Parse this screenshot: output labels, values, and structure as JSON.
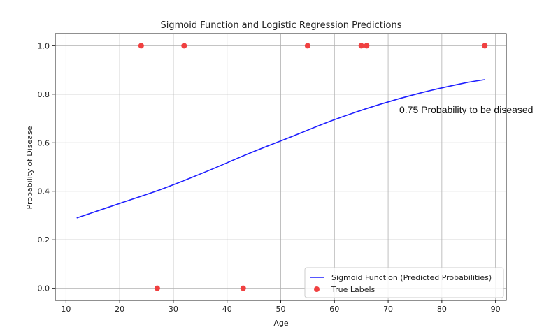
{
  "chart_data": {
    "type": "line",
    "title": "Sigmoid Function and Logistic Regression Predictions",
    "xlabel": "Age",
    "ylabel": "Probability of Disease",
    "xlim": [
      8,
      92
    ],
    "ylim": [
      -0.05,
      1.05
    ],
    "xticks": [
      10,
      20,
      30,
      40,
      50,
      60,
      70,
      80,
      90
    ],
    "yticks": [
      0.0,
      0.2,
      0.4,
      0.6,
      0.8,
      1.0
    ],
    "xtick_labels": [
      "10",
      "20",
      "30",
      "40",
      "50",
      "60",
      "70",
      "80",
      "90"
    ],
    "ytick_labels": [
      "0.0",
      "0.2",
      "0.4",
      "0.6",
      "0.8",
      "1.0"
    ],
    "grid": true,
    "legend_position": "bottom-right",
    "series": [
      {
        "name": "Sigmoid Function (Predicted Probabilities)",
        "kind": "line",
        "color": "#1f1fff",
        "x": [
          12,
          20,
          28,
          36,
          44,
          52,
          60,
          68,
          76,
          84,
          88
        ],
        "y": [
          0.29,
          0.35,
          0.41,
          0.48,
          0.555,
          0.625,
          0.695,
          0.755,
          0.805,
          0.845,
          0.86
        ]
      },
      {
        "name": "True Labels",
        "kind": "scatter",
        "color": "#f04040",
        "x": [
          24,
          32,
          55,
          65,
          66,
          88,
          27,
          43
        ],
        "y": [
          1,
          1,
          1,
          1,
          1,
          1,
          0,
          0
        ]
      }
    ],
    "annotation": "0.75 Probability to be diseased"
  }
}
